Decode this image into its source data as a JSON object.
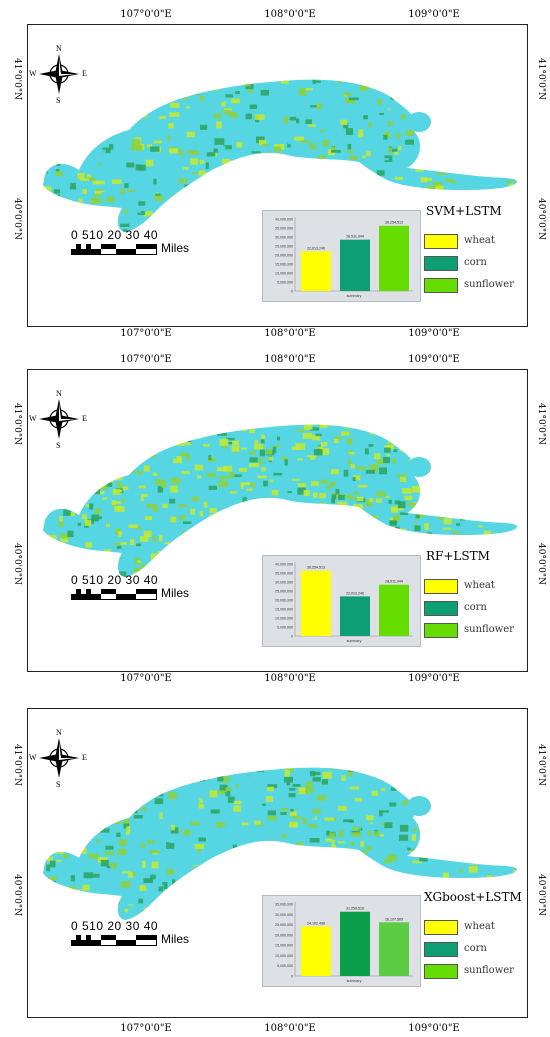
{
  "panels": [
    {
      "id": "svm",
      "lon_labels_top": [
        "107°0'0\"E",
        "108°0'0\"E",
        "109°0'0\"E"
      ],
      "lon_labels_bottom": [
        "107°0'0\"E",
        "108°0'0\"E",
        "109°0'0\"E"
      ],
      "lat_labels": [
        "41°0'0\"N",
        "40°0'0\"N"
      ],
      "compass": {
        "n": "N",
        "s": "S",
        "e": "E",
        "w": "W"
      },
      "scale": {
        "ticks": "0 510 20 30 40",
        "unit": "Miles"
      },
      "legend": {
        "title": "SVM+LSTM",
        "items": [
          "wheat",
          "corn",
          "sunflower"
        ]
      },
      "chart_data": {
        "type": "bar",
        "categories": [
          "wheat",
          "corn",
          "sunflower"
        ],
        "values": [
          22013246,
          28511044,
          36254513
        ],
        "value_labels": [
          "22,013,246",
          "28,511,044",
          "36,254,513"
        ],
        "colors": [
          "#ffff00",
          "#0e9e73",
          "#66dd00"
        ],
        "xlabel": "summary",
        "ylim": [
          0,
          40000000
        ],
        "yticks": [
          "40,000,000",
          "35,000,000",
          "30,000,000",
          "25,000,000",
          "20,000,000",
          "15,000,000",
          "10,000,000",
          "5,000,000",
          "0"
        ]
      }
    },
    {
      "id": "rf",
      "lon_labels_top": [
        "107°0'0\"E",
        "108°0'0\"E",
        "109°0'0\"E"
      ],
      "lon_labels_bottom": [
        "107°0'0\"E",
        "108°0'0\"E",
        "109°0'0\"E"
      ],
      "lat_labels": [
        "41°0'0\"N",
        "40°0'0\"N"
      ],
      "compass": {
        "n": "N",
        "s": "S",
        "e": "E",
        "w": "W"
      },
      "scale": {
        "ticks": "0 510 20 30 40",
        "unit": "Miles"
      },
      "legend": {
        "title": "RF+LSTM",
        "items": [
          "wheat",
          "corn",
          "sunflower"
        ]
      },
      "chart_data": {
        "type": "bar",
        "categories": [
          "wheat",
          "corn",
          "sunflower"
        ],
        "values": [
          36254513,
          22013246,
          28511044
        ],
        "value_labels": [
          "36,254,513",
          "22,013,246",
          "28,511,044"
        ],
        "colors": [
          "#ffff00",
          "#0e9e73",
          "#66dd00"
        ],
        "xlabel": "summary",
        "ylim": [
          0,
          40000000
        ],
        "yticks": [
          "40,000,000",
          "35,000,000",
          "30,000,000",
          "25,000,000",
          "20,000,000",
          "15,000,000",
          "10,000,000",
          "5,000,000",
          "0"
        ]
      }
    },
    {
      "id": "xgb",
      "lon_labels_top": [],
      "lon_labels_bottom": [
        "107°0'0\"E",
        "108°0'0\"E",
        "109°0'0\"E"
      ],
      "lat_labels": [
        "41°0'0\"N",
        "40°0'0\"N"
      ],
      "compass": {
        "n": "N",
        "s": "S",
        "e": "E",
        "w": "W"
      },
      "scale": {
        "ticks": "0 510 20 30 40",
        "unit": "Miles"
      },
      "legend": {
        "title": "XGboost+LSTM",
        "items": [
          "wheat",
          "corn",
          "sunflower"
        ]
      },
      "chart_data": {
        "type": "bar",
        "categories": [
          "wheat",
          "corn",
          "sunflower"
        ],
        "values": [
          24102498,
          31250516,
          26107565
        ],
        "value_labels": [
          "24,102,498",
          "31,250,516",
          "26,107,565"
        ],
        "colors": [
          "#ffff00",
          "#0a9e4a",
          "#5ccc44"
        ],
        "xlabel": "summary",
        "ylim": [
          0,
          35000000
        ],
        "yticks": [
          "35,000,000",
          "30,000,000",
          "25,000,000",
          "20,000,000",
          "15,000,000",
          "10,000,000",
          "5,000,000",
          "0"
        ]
      }
    }
  ],
  "legend_swatch_colors": [
    "#ffff00",
    "#0e9e73",
    "#66dd00"
  ],
  "map_colors": {
    "water": "#56d6e3",
    "crop_a": "#2aa35e",
    "crop_b": "#c8ea2a",
    "crop_c": "#8fd03a"
  }
}
